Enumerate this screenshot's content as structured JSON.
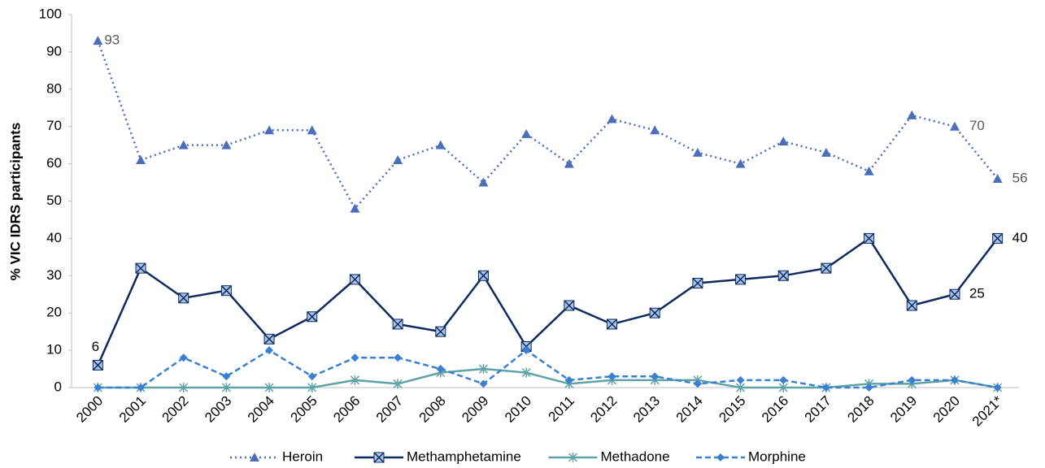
{
  "chart_data": {
    "type": "line",
    "y_label": "% VIC IDRS participants",
    "categories": [
      "2000",
      "2001",
      "2002",
      "2003",
      "2004",
      "2005",
      "2006",
      "2007",
      "2008",
      "2009",
      "2010",
      "2011",
      "2012",
      "2013",
      "2014",
      "2015",
      "2016",
      "2017",
      "2018",
      "2019",
      "2020",
      "2021*"
    ],
    "series": [
      {
        "name": "Heroin",
        "color": "#4a6fb8",
        "dash": "dotted",
        "marker": "triangle",
        "values": [
          93,
          61,
          65,
          65,
          69,
          69,
          48,
          61,
          65,
          55,
          68,
          60,
          72,
          69,
          63,
          60,
          66,
          63,
          58,
          73,
          70,
          56
        ],
        "value_labels": [
          "93",
          null,
          null,
          null,
          null,
          null,
          null,
          null,
          null,
          null,
          null,
          null,
          null,
          null,
          null,
          null,
          null,
          null,
          null,
          null,
          "70",
          "56"
        ]
      },
      {
        "name": "Methamphetamine",
        "color": "#0f2a5e",
        "dash": "solid",
        "marker": "boxed-x",
        "values": [
          6,
          32,
          24,
          26,
          13,
          19,
          29,
          17,
          15,
          30,
          11,
          22,
          17,
          20,
          28,
          29,
          30,
          32,
          40,
          22,
          25,
          40
        ],
        "value_labels": [
          "6",
          null,
          null,
          null,
          null,
          null,
          null,
          null,
          null,
          null,
          null,
          null,
          null,
          null,
          null,
          null,
          null,
          null,
          null,
          null,
          "25",
          "40"
        ]
      },
      {
        "name": "Methadone",
        "color": "#5fa3a6",
        "dash": "solid",
        "marker": "asterisk",
        "values": [
          0,
          0,
          0,
          0,
          0,
          0,
          2,
          1,
          4,
          5,
          4,
          1,
          2,
          2,
          2,
          0,
          0,
          0,
          1,
          1,
          2,
          0
        ]
      },
      {
        "name": "Morphine",
        "color": "#3a80d2",
        "dash": "dashed",
        "marker": "diamond",
        "values": [
          0,
          0,
          8,
          3,
          10,
          3,
          8,
          8,
          5,
          1,
          10,
          2,
          3,
          3,
          1,
          2,
          2,
          0,
          0,
          2,
          2,
          0
        ]
      }
    ],
    "ylim": [
      0,
      100
    ],
    "yticks": [
      0,
      10,
      20,
      30,
      40,
      50,
      60,
      70,
      80,
      90,
      100
    ],
    "grid": false,
    "legend": "bottom"
  }
}
